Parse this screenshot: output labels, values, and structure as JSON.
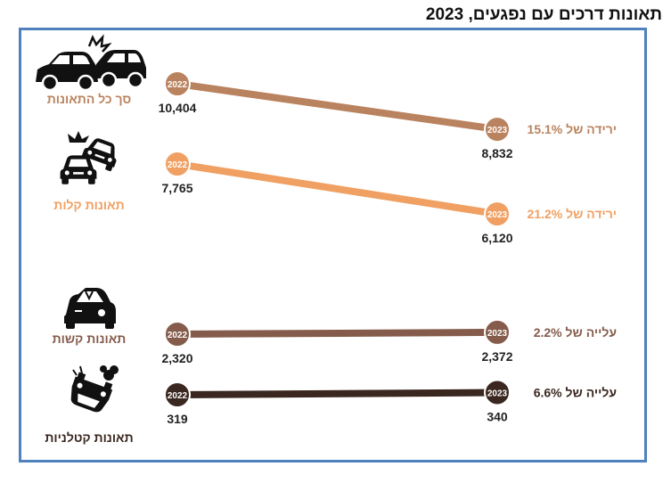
{
  "title": "תאונות דרכים עם נפגעים, 2023",
  "chart_data": {
    "type": "slope",
    "x": [
      "2022",
      "2023"
    ],
    "series": [
      {
        "name": "סך כל התאונות",
        "values": [
          10404,
          8832
        ],
        "labels": [
          "10,404",
          "8,832"
        ],
        "change": "ירידה של 15.1%",
        "color": "#b9835f",
        "icon": "car-collision-icon"
      },
      {
        "name": "תאונות קלות",
        "values": [
          7765,
          6120
        ],
        "labels": [
          "7,765",
          "6,120"
        ],
        "change": "ירידה של 21.2%",
        "color": "#f0a062",
        "icon": "minor-crash-icon"
      },
      {
        "name": "תאונות קשות",
        "values": [
          2320,
          2372
        ],
        "labels": [
          "2,320",
          "2,372"
        ],
        "change": "עלייה של 2.2%",
        "color": "#855c4b",
        "icon": "wrecked-car-icon"
      },
      {
        "name": "תאונות קטלניות",
        "values": [
          319,
          340
        ],
        "labels": [
          "319",
          "340"
        ],
        "change": "עלייה של 6.6%",
        "color": "#3a2720",
        "icon": "overturned-car-icon"
      }
    ]
  }
}
